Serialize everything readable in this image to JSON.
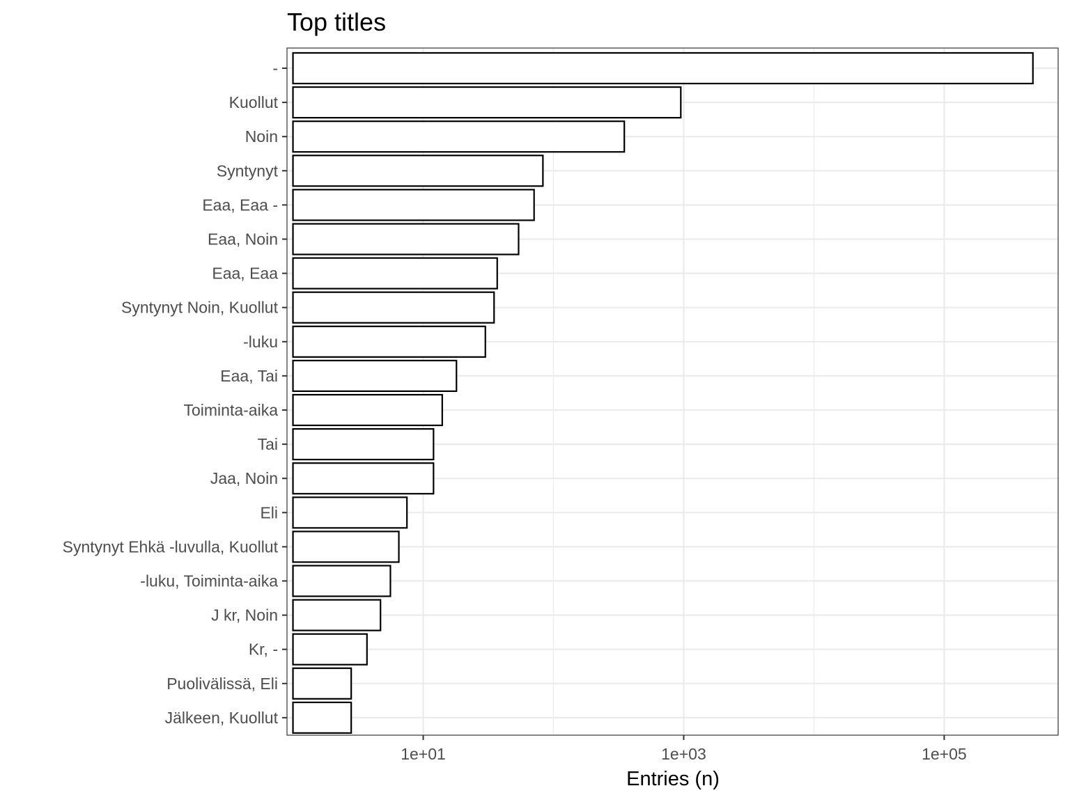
{
  "chart_data": {
    "type": "bar",
    "orientation": "horizontal",
    "title": "Top titles",
    "xlabel": "Entries (n)",
    "ylabel": "",
    "x_scale": "log10",
    "xlim": [
      0.9,
      750000
    ],
    "x_ticks": [
      {
        "value": 10,
        "label": "1e+01"
      },
      {
        "value": 1000,
        "label": "1e+03"
      },
      {
        "value": 100000,
        "label": "1e+05"
      }
    ],
    "grid": true,
    "legend": "none",
    "categories": [
      "-",
      "Kuollut",
      "Noin",
      "Syntynyt",
      "Eaa, Eaa -",
      "Eaa, Noin",
      "Eaa, Eaa",
      "Syntynyt Noin, Kuollut",
      "-luku",
      "Eaa, Tai",
      "Toiminta-aika",
      "Tai",
      "Jaa, Noin",
      "Eli",
      "Syntynyt Ehkä -luvulla, Kuollut",
      "-luku, Toiminta-aika",
      "J kr, Noin",
      "Kr, -",
      "Puolivälissä, Eli",
      "Jälkeen, Kuollut"
    ],
    "values": [
      480000,
      950,
      350,
      83,
      71,
      54,
      37,
      35,
      30,
      18,
      14,
      12,
      12,
      7.5,
      6.5,
      5.6,
      4.7,
      3.7,
      2.8,
      2.8
    ],
    "colors": {
      "fill": "#ffffff",
      "stroke": "#000000",
      "grid": "#ebebeb",
      "panel_border": "#333333",
      "tick_text": "#4d4d4d"
    }
  }
}
